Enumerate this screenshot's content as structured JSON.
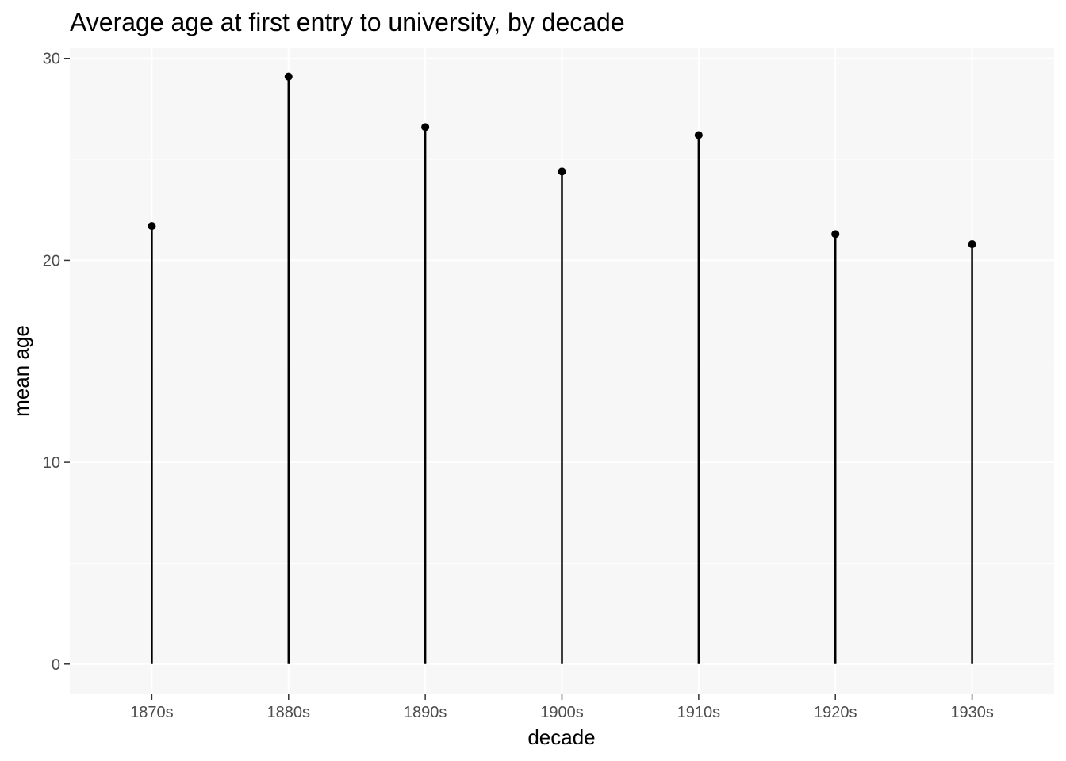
{
  "chart_data": {
    "type": "lollipop",
    "title": "Average age at first entry to university, by decade",
    "xlabel": "decade",
    "ylabel": "mean age",
    "categories": [
      "1870s",
      "1880s",
      "1890s",
      "1900s",
      "1910s",
      "1920s",
      "1930s"
    ],
    "values": [
      21.7,
      29.1,
      26.6,
      24.4,
      26.2,
      21.3,
      20.8
    ],
    "yticks": [
      0,
      10,
      20,
      30
    ],
    "ylim": [
      -1.5,
      30.5
    ],
    "grid": true,
    "legend": "none",
    "colors": {
      "panel": "#f7f7f7",
      "grid": "#ffffff",
      "mark": "#000000",
      "tick_text": "#4d4d4d"
    }
  }
}
